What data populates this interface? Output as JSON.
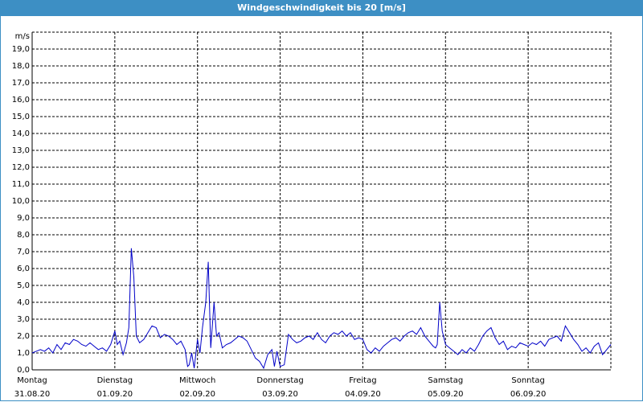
{
  "window": {
    "title": "Windgeschwindigkeit bis 20 [m/s]"
  },
  "chart_data": {
    "type": "line",
    "title": "Windgeschwindigkeit bis 20 [m/s]",
    "ylabel": "m/s",
    "ylim": [
      0,
      20
    ],
    "yticks": [
      "0,0",
      "1,0",
      "2,0",
      "3,0",
      "4,0",
      "5,0",
      "6,0",
      "7,0",
      "8,0",
      "9,0",
      "10,0",
      "11,0",
      "12,0",
      "13,0",
      "14,0",
      "15,0",
      "16,0",
      "17,0",
      "18,0",
      "19,0"
    ],
    "xlim": [
      0,
      7
    ],
    "x_ticks": [
      {
        "day": "Montag",
        "date": "31.08.20"
      },
      {
        "day": "Dienstag",
        "date": "01.09.20"
      },
      {
        "day": "Mittwoch",
        "date": "02.09.20"
      },
      {
        "day": "Donnerstag",
        "date": "03.09.20"
      },
      {
        "day": "Freitag",
        "date": "04.09.20"
      },
      {
        "day": "Samstag",
        "date": "05.09.20"
      },
      {
        "day": "Sonntag",
        "date": "06.09.20"
      }
    ],
    "grid": true,
    "line_color": "#0000c8",
    "series": [
      {
        "x": [
          0.0,
          0.05,
          0.1,
          0.15,
          0.2,
          0.25,
          0.3,
          0.35,
          0.4,
          0.45,
          0.5,
          0.55,
          0.6,
          0.65,
          0.7,
          0.75,
          0.8,
          0.85,
          0.9,
          0.95,
          1.0,
          1.03,
          1.06,
          1.1,
          1.14,
          1.17,
          1.2,
          1.23,
          1.26,
          1.3,
          1.35,
          1.4,
          1.45,
          1.5,
          1.55,
          1.6,
          1.65,
          1.7,
          1.75,
          1.8,
          1.85,
          1.88,
          1.9,
          1.93,
          1.96,
          2.0,
          2.03,
          2.06,
          2.1,
          2.13,
          2.16,
          2.2,
          2.23,
          2.26,
          2.3,
          2.35,
          2.4,
          2.45,
          2.5,
          2.55,
          2.6,
          2.65,
          2.7,
          2.75,
          2.8,
          2.85,
          2.9,
          2.93,
          2.96,
          3.0,
          3.05,
          3.1,
          3.15,
          3.2,
          3.25,
          3.3,
          3.35,
          3.4,
          3.45,
          3.5,
          3.55,
          3.6,
          3.65,
          3.7,
          3.75,
          3.8,
          3.85,
          3.9,
          3.95,
          4.0,
          4.05,
          4.1,
          4.15,
          4.2,
          4.25,
          4.3,
          4.35,
          4.4,
          4.45,
          4.5,
          4.55,
          4.6,
          4.65,
          4.7,
          4.75,
          4.8,
          4.85,
          4.88,
          4.9,
          4.93,
          4.96,
          5.0,
          5.05,
          5.1,
          5.15,
          5.2,
          5.25,
          5.3,
          5.35,
          5.4,
          5.45,
          5.5,
          5.55,
          5.6,
          5.65,
          5.7,
          5.75,
          5.8,
          5.85,
          5.9,
          5.95,
          6.0,
          6.05,
          6.1,
          6.15,
          6.2,
          6.25,
          6.3,
          6.35,
          6.4,
          6.45,
          6.5,
          6.55,
          6.6,
          6.65,
          6.7,
          6.75,
          6.8,
          6.85,
          6.9,
          6.95,
          7.0
        ],
        "y": [
          1.0,
          1.1,
          1.2,
          1.1,
          1.3,
          1.0,
          1.5,
          1.2,
          1.6,
          1.5,
          1.8,
          1.7,
          1.5,
          1.4,
          1.6,
          1.4,
          1.2,
          1.3,
          1.1,
          1.5,
          2.3,
          1.5,
          1.7,
          0.9,
          1.6,
          2.5,
          7.2,
          5.5,
          2.0,
          1.6,
          1.8,
          2.2,
          2.6,
          2.5,
          1.9,
          2.1,
          2.0,
          1.8,
          1.5,
          1.7,
          1.2,
          0.2,
          0.3,
          1.0,
          0.1,
          1.8,
          1.0,
          2.5,
          4.0,
          6.4,
          1.3,
          4.0,
          2.0,
          2.2,
          1.3,
          1.5,
          1.6,
          1.8,
          2.0,
          1.9,
          1.7,
          1.2,
          0.7,
          0.5,
          0.1,
          0.9,
          1.2,
          0.2,
          1.1,
          0.2,
          0.3,
          2.1,
          1.8,
          1.6,
          1.7,
          1.9,
          2.0,
          1.8,
          2.2,
          1.8,
          1.6,
          2.0,
          2.2,
          2.1,
          2.3,
          2.0,
          2.2,
          1.8,
          1.9,
          1.8,
          1.2,
          1.0,
          1.3,
          1.1,
          1.4,
          1.6,
          1.8,
          1.9,
          1.7,
          2.0,
          2.2,
          2.3,
          2.1,
          2.5,
          2.0,
          1.7,
          1.4,
          1.3,
          1.5,
          4.0,
          2.3,
          1.5,
          1.3,
          1.1,
          0.9,
          1.2,
          1.0,
          1.3,
          1.1,
          1.5,
          2.0,
          2.3,
          2.5,
          1.9,
          1.5,
          1.7,
          1.2,
          1.4,
          1.3,
          1.6,
          1.5,
          1.4,
          1.6,
          1.5,
          1.7,
          1.4,
          1.8,
          1.9,
          2.0,
          1.7,
          2.6,
          2.2,
          1.8,
          1.5,
          1.1,
          1.3,
          1.0,
          1.4,
          1.6,
          0.9,
          1.2,
          1.5
        ]
      }
    ]
  }
}
